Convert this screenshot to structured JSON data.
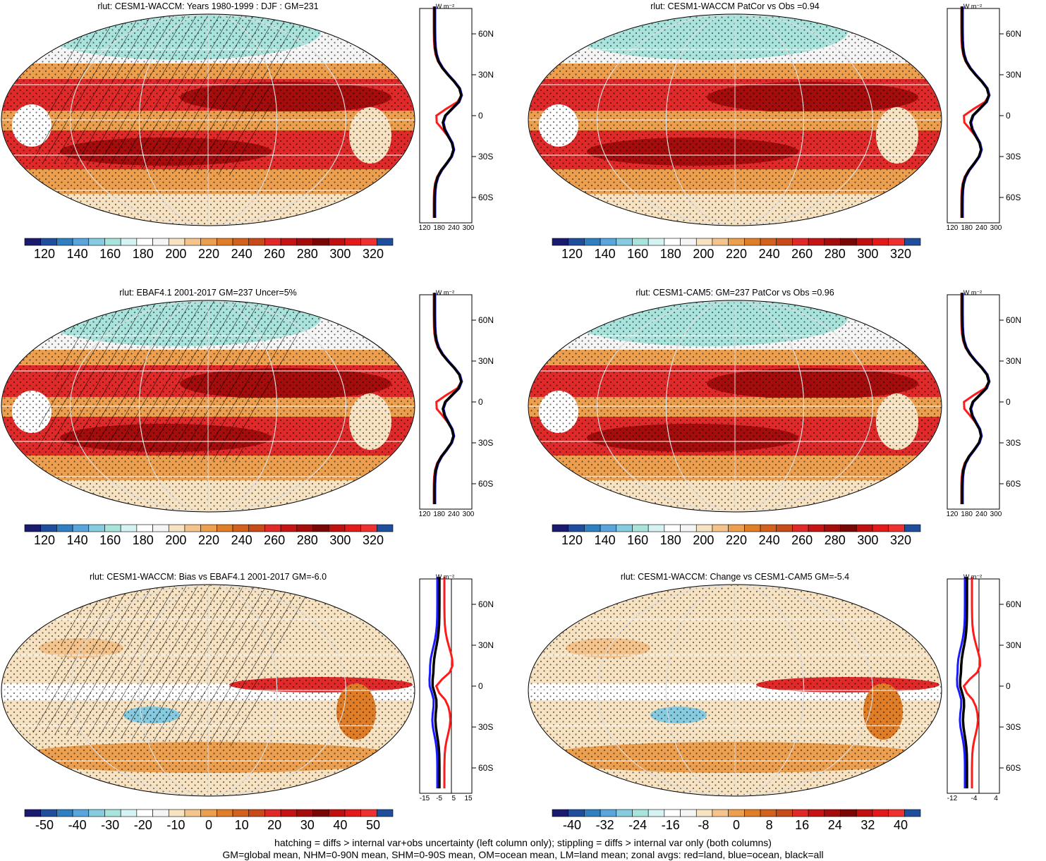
{
  "panels": [
    {
      "id": "waccm-clim",
      "title": "rlut: CESM1-WACCM: Years 1980-1999 : DJF : GM=231",
      "kind": "clim",
      "hatch": true,
      "colorbar_labels": [
        "120",
        "140",
        "160",
        "180",
        "200",
        "220",
        "240",
        "260",
        "280",
        "300",
        "320"
      ],
      "zonal_ticks": [
        "120",
        "180",
        "240",
        "300"
      ],
      "zonal_unit": "W m⁻²"
    },
    {
      "id": "waccm-patcor",
      "title": "rlut: CESM1-WACCM PatCor vs Obs =0.94",
      "kind": "clim",
      "hatch": false,
      "colorbar_labels": [
        "120",
        "140",
        "160",
        "180",
        "200",
        "220",
        "240",
        "260",
        "280",
        "300",
        "320"
      ],
      "zonal_ticks": [
        "120",
        "180",
        "240",
        "300"
      ],
      "zonal_unit": "W m⁻²"
    },
    {
      "id": "ebaf-obs",
      "title": "rlut: EBAF4.1 2001-2017 GM=237 Uncer=5%",
      "kind": "clim",
      "hatch": true,
      "colorbar_labels": [
        "120",
        "140",
        "160",
        "180",
        "200",
        "220",
        "240",
        "260",
        "280",
        "300",
        "320"
      ],
      "zonal_ticks": [
        "120",
        "180",
        "240",
        "300"
      ],
      "zonal_unit": "W m⁻²"
    },
    {
      "id": "cam5-clim",
      "title": "rlut: CESM1-CAM5: GM=237 PatCor vs Obs =0.96",
      "kind": "clim",
      "hatch": false,
      "colorbar_labels": [
        "120",
        "140",
        "160",
        "180",
        "200",
        "220",
        "240",
        "260",
        "280",
        "300",
        "320"
      ],
      "zonal_ticks": [
        "120",
        "180",
        "240",
        "300"
      ],
      "zonal_unit": "W m⁻²"
    },
    {
      "id": "waccm-bias",
      "title": "rlut: CESM1-WACCM: Bias vs EBAF4.1 2001-2017 GM=-6.0",
      "kind": "bias",
      "hatch": true,
      "colorbar_labels": [
        "-50",
        "-40",
        "-30",
        "-20",
        "-10",
        "0",
        "10",
        "20",
        "30",
        "40",
        "50"
      ],
      "zonal_ticks": [
        "-15",
        "-5",
        "5",
        "15"
      ],
      "zonal_unit": "W m⁻²"
    },
    {
      "id": "waccm-change",
      "title": "rlut: CESM1-WACCM: Change vs CESM1-CAM5 GM=-5.4",
      "kind": "change",
      "hatch": false,
      "colorbar_labels": [
        "-40",
        "-32",
        "-24",
        "-16",
        "-8",
        "0",
        "8",
        "16",
        "24",
        "32",
        "40"
      ],
      "zonal_ticks": [
        "-12",
        "-4",
        "4"
      ],
      "zonal_unit": "W m⁻²"
    }
  ],
  "lat_labels": [
    "60N",
    "30N",
    "0",
    "30S",
    "60S"
  ],
  "palettes": {
    "clim": [
      "#1a1a6e",
      "#1f4e9c",
      "#2f7fc1",
      "#5aa6dc",
      "#86cbe0",
      "#a9e4dc",
      "#d6f3f3",
      "#ffffff",
      "#f5f5f5",
      "#f7e2c2",
      "#f4c48c",
      "#ec9f4e",
      "#e07d27",
      "#d4611b",
      "#c94a19",
      "#e02a2a",
      "#c61414",
      "#a50c0c",
      "#7a0606",
      "#c01010",
      "#e31a1a",
      "#ef3030",
      "#1f4e9c"
    ],
    "diff": [
      "#1a1a6e",
      "#1f4e9c",
      "#2f7fc1",
      "#5aa6dc",
      "#86cbe0",
      "#a9e4dc",
      "#d6f3f3",
      "#ffffff",
      "#f5f5f5",
      "#f7e2c2",
      "#f4c48c",
      "#ec9f4e",
      "#e07d27",
      "#d4611b",
      "#c94a19",
      "#e02a2a",
      "#c61414",
      "#a50c0c",
      "#7a0606",
      "#c01010",
      "#e31a1a",
      "#ef3030",
      "#1f4e9c"
    ]
  },
  "zonal_legend_colors": {
    "land": "#ff1a1a",
    "ocean": "#1a1aff",
    "all": "#000000"
  },
  "footnote_line1": "hatching = diffs > internal var+obs uncertainty (left column only); stippling = diffs > internal var only (both columns)",
  "footnote_line2": "GM=global mean, NHM=0-90N mean, SHM=0-90S mean, OM=ocean mean, LM=land mean; zonal avgs: red=land, blue=ocean, black=all"
}
